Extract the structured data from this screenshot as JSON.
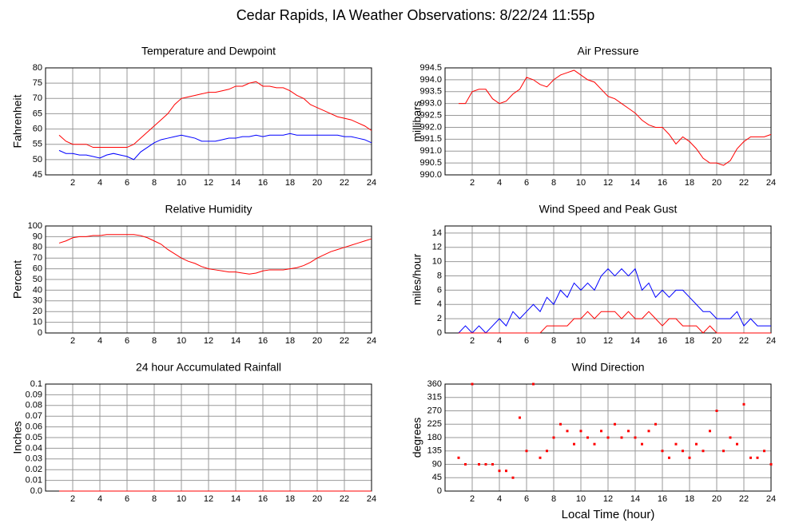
{
  "title": "Cedar Rapids, IA Weather Observations: 8/22/24 11:55p",
  "chart_data": [
    {
      "type": "line",
      "title": "Temperature and Dewpoint",
      "ylabel": "Fahrenheit",
      "xlim": [
        0,
        24
      ],
      "xticks": [
        2,
        4,
        6,
        8,
        10,
        12,
        14,
        16,
        18,
        20,
        22,
        24
      ],
      "ylim": [
        45,
        80
      ],
      "yticks": [
        45,
        50,
        55,
        60,
        65,
        70,
        75,
        80
      ],
      "grid": true,
      "x": [
        1,
        1.5,
        2,
        2.5,
        3,
        3.5,
        4,
        4.5,
        5,
        5.5,
        6,
        6.5,
        7,
        7.5,
        8,
        8.5,
        9,
        9.5,
        10,
        10.5,
        11,
        11.5,
        12,
        12.5,
        13,
        13.5,
        14,
        14.5,
        15,
        15.5,
        16,
        16.5,
        17,
        17.5,
        18,
        18.5,
        19,
        19.5,
        20,
        20.5,
        21,
        21.5,
        22,
        22.5,
        23,
        23.5,
        24
      ],
      "series": [
        {
          "name": "Temperature",
          "color": "#ff0000",
          "values": [
            58,
            56,
            55,
            55,
            55,
            54,
            54,
            54,
            54,
            54,
            54,
            55,
            57,
            59,
            61,
            63,
            65,
            68,
            70,
            70.5,
            71,
            71.5,
            72,
            72,
            72.5,
            73,
            74,
            74,
            75,
            75.5,
            74,
            74,
            73.5,
            73.5,
            72.5,
            71,
            70,
            68,
            67,
            66,
            65,
            64,
            63.5,
            63,
            62,
            61,
            59.5
          ]
        },
        {
          "name": "Dewpoint",
          "color": "#0000ff",
          "values": [
            53,
            52,
            52,
            51.5,
            51.5,
            51,
            50.5,
            51.5,
            52,
            51.5,
            51,
            50,
            52.5,
            54,
            55.5,
            56.5,
            57,
            57.5,
            58,
            57.5,
            57,
            56,
            56,
            56,
            56.5,
            57,
            57,
            57.5,
            57.5,
            58,
            57.5,
            58,
            58,
            58,
            58.5,
            58,
            58,
            58,
            58,
            58,
            58,
            58,
            57.5,
            57.5,
            57,
            56.5,
            55.5
          ]
        }
      ]
    },
    {
      "type": "line",
      "title": "Air Pressure",
      "ylabel": "millibars",
      "xlim": [
        0,
        24
      ],
      "xticks": [
        2,
        4,
        6,
        8,
        10,
        12,
        14,
        16,
        18,
        20,
        22,
        24
      ],
      "ylim": [
        990,
        994.5
      ],
      "yticks": [
        {
          "value": 990,
          "label": "990.0"
        },
        990.5,
        {
          "value": 991,
          "label": "991.0"
        },
        991.5,
        {
          "value": 992,
          "label": "992.0"
        },
        992.5,
        {
          "value": 993,
          "label": "993.0"
        },
        993.5,
        {
          "value": 994,
          "label": "994.0"
        },
        994.5
      ],
      "grid": true,
      "x": [
        1,
        1.5,
        2,
        2.5,
        3,
        3.5,
        4,
        4.5,
        5,
        5.5,
        6,
        6.5,
        7,
        7.5,
        8,
        8.5,
        9,
        9.5,
        10,
        10.5,
        11,
        11.5,
        12,
        12.5,
        13,
        13.5,
        14,
        14.5,
        15,
        15.5,
        16,
        16.5,
        17,
        17.5,
        18,
        18.5,
        19,
        19.5,
        20,
        20.5,
        21,
        21.5,
        22,
        22.5,
        23,
        23.5,
        24
      ],
      "series": [
        {
          "name": "Pressure",
          "color": "#ff0000",
          "values": [
            993.0,
            993.0,
            993.5,
            993.6,
            993.6,
            993.2,
            993.0,
            993.1,
            993.4,
            993.6,
            994.1,
            994.0,
            993.8,
            993.7,
            994.0,
            994.2,
            994.3,
            994.4,
            994.2,
            994.0,
            993.9,
            993.6,
            993.3,
            993.2,
            993.0,
            992.8,
            992.6,
            992.3,
            992.1,
            992.0,
            992.0,
            991.7,
            991.3,
            991.6,
            991.4,
            991.1,
            990.7,
            990.5,
            990.5,
            990.4,
            990.6,
            991.1,
            991.4,
            991.6,
            991.6,
            991.6,
            991.7
          ]
        }
      ]
    },
    {
      "type": "line",
      "title": "Relative Humidity",
      "ylabel": "Percent",
      "xlim": [
        0,
        24
      ],
      "xticks": [
        2,
        4,
        6,
        8,
        10,
        12,
        14,
        16,
        18,
        20,
        22,
        24
      ],
      "ylim": [
        0,
        100
      ],
      "yticks": [
        0,
        10,
        20,
        30,
        40,
        50,
        60,
        70,
        80,
        90,
        100
      ],
      "grid": true,
      "x": [
        1,
        1.5,
        2,
        2.5,
        3,
        3.5,
        4,
        4.5,
        5,
        5.5,
        6,
        6.5,
        7,
        7.5,
        8,
        8.5,
        9,
        9.5,
        10,
        10.5,
        11,
        11.5,
        12,
        12.5,
        13,
        13.5,
        14,
        14.5,
        15,
        15.5,
        16,
        16.5,
        17,
        17.5,
        18,
        18.5,
        19,
        19.5,
        20,
        20.5,
        21,
        21.5,
        22,
        22.5,
        23,
        23.5,
        24
      ],
      "series": [
        {
          "name": "Relative Humidity",
          "color": "#ff0000",
          "values": [
            84,
            86,
            89,
            90,
            90,
            91,
            91,
            92,
            92,
            92,
            92,
            92,
            91,
            89,
            86,
            83,
            78,
            74,
            70,
            67,
            65,
            62,
            60,
            59,
            58,
            57,
            57,
            56,
            55,
            56,
            58,
            59,
            59,
            59,
            60,
            61,
            63,
            66,
            70,
            73,
            76,
            78,
            80,
            82,
            84,
            86,
            88
          ]
        }
      ]
    },
    {
      "type": "line",
      "title": "Wind Speed and Peak Gust",
      "ylabel": "miles/hour",
      "xlim": [
        0,
        24
      ],
      "xticks": [
        2,
        4,
        6,
        8,
        10,
        12,
        14,
        16,
        18,
        20,
        22,
        24
      ],
      "ylim": [
        0,
        15
      ],
      "yticks": [
        0,
        2,
        4,
        6,
        8,
        10,
        12,
        14
      ],
      "grid": true,
      "x": [
        1,
        1.5,
        2,
        2.5,
        3,
        3.5,
        4,
        4.5,
        5,
        5.5,
        6,
        6.5,
        7,
        7.5,
        8,
        8.5,
        9,
        9.5,
        10,
        10.5,
        11,
        11.5,
        12,
        12.5,
        13,
        13.5,
        14,
        14.5,
        15,
        15.5,
        16,
        16.5,
        17,
        17.5,
        18,
        18.5,
        19,
        19.5,
        20,
        20.5,
        21,
        21.5,
        22,
        22.5,
        23,
        23.5,
        24
      ],
      "series": [
        {
          "name": "Wind Speed",
          "color": "#0000ff",
          "values": [
            0,
            1,
            0,
            1,
            0,
            1,
            2,
            1,
            3,
            2,
            3,
            4,
            3,
            5,
            4,
            6,
            5,
            7,
            6,
            7,
            6,
            8,
            9,
            8,
            9,
            8,
            9,
            6,
            7,
            5,
            6,
            5,
            6,
            6,
            5,
            4,
            3,
            3,
            2,
            2,
            2,
            3,
            1,
            2,
            1,
            1,
            1
          ]
        },
        {
          "name": "Peak Gust",
          "color": "#ff0000",
          "values": [
            0,
            0,
            0,
            0,
            0,
            0,
            0,
            0,
            0,
            0,
            0,
            0,
            0,
            1,
            1,
            1,
            1,
            2,
            2,
            3,
            2,
            3,
            3,
            3,
            2,
            3,
            2,
            2,
            3,
            2,
            1,
            2,
            2,
            1,
            1,
            1,
            0,
            1,
            0,
            0,
            0,
            0,
            0,
            0,
            0,
            0,
            0
          ]
        }
      ]
    },
    {
      "type": "line",
      "title": "24 hour Accumulated Rainfall",
      "ylabel": "Inches",
      "xlim": [
        0,
        24
      ],
      "xticks": [
        2,
        4,
        6,
        8,
        10,
        12,
        14,
        16,
        18,
        20,
        22,
        24
      ],
      "ylim": [
        0,
        0.1
      ],
      "yticks": [
        {
          "value": 0,
          "label": "0.0"
        },
        0.01,
        0.02,
        0.03,
        0.04,
        0.05,
        0.06,
        0.07,
        0.08,
        0.09,
        0.1
      ],
      "grid": true,
      "x": [
        1,
        24
      ],
      "series": [
        {
          "name": "Rainfall",
          "color": "#ff0000",
          "values": [
            0,
            0
          ]
        }
      ]
    },
    {
      "type": "scatter",
      "title": "Wind Direction",
      "ylabel": "degrees",
      "xlabel": "Local Time (hour)",
      "xlim": [
        0,
        24
      ],
      "xticks": [
        2,
        4,
        6,
        8,
        10,
        12,
        14,
        16,
        18,
        20,
        22,
        24
      ],
      "ylim": [
        0,
        360
      ],
      "yticks": [
        0,
        45,
        90,
        135,
        180,
        225,
        270,
        315,
        360
      ],
      "grid": true,
      "x": [
        1,
        1.5,
        2,
        2.5,
        3,
        3.5,
        4,
        4.5,
        5,
        5.5,
        6,
        6.5,
        7,
        7.5,
        8,
        8.5,
        9,
        9.5,
        10,
        10.5,
        11,
        11.5,
        12,
        12.5,
        13,
        13.5,
        14,
        14.5,
        15,
        15.5,
        16,
        16.5,
        17,
        17.5,
        18,
        18.5,
        19,
        19.5,
        20,
        20.5,
        21,
        21.5,
        22,
        22.5,
        23,
        23.5,
        24
      ],
      "series": [
        {
          "name": "Wind Direction",
          "color": "#ff0000",
          "values": [
            112,
            90,
            360,
            90,
            90,
            90,
            68,
            68,
            45,
            247,
            135,
            360,
            112,
            135,
            180,
            225,
            202,
            158,
            202,
            180,
            158,
            202,
            180,
            225,
            180,
            202,
            180,
            158,
            202,
            225,
            135,
            112,
            158,
            135,
            112,
            158,
            135,
            202,
            270,
            135,
            180,
            158,
            292,
            112,
            112,
            135,
            90
          ]
        }
      ]
    }
  ]
}
